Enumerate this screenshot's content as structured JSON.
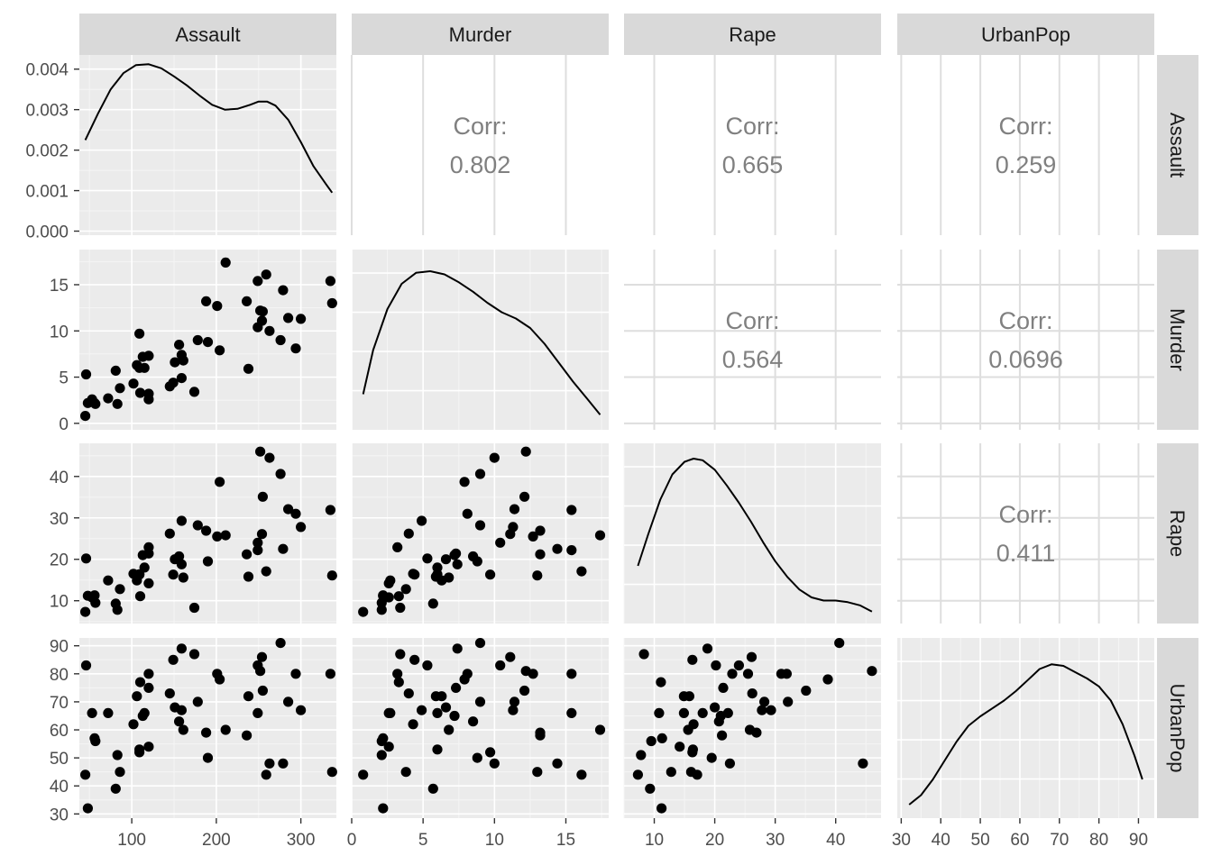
{
  "chart_data": {
    "type": "scatter-matrix",
    "variables": [
      "Assault",
      "Murder",
      "Rape",
      "UrbanPop"
    ],
    "corr_label": "Corr:",
    "correlations": {
      "Murder|Assault": "0.802",
      "Rape|Assault": "0.665",
      "UrbanPop|Assault": "0.259",
      "Rape|Murder": "0.564",
      "UrbanPop|Murder": "0.0696",
      "UrbanPop|Rape": "0.411"
    },
    "axes": {
      "Assault": {
        "range": [
          38,
          342
        ],
        "ticks": [
          100,
          200,
          300
        ]
      },
      "Murder": {
        "range": [
          0,
          18
        ],
        "ticks": [
          0,
          5,
          10,
          15
        ]
      },
      "Rape": {
        "range": [
          5,
          47.5
        ],
        "ticks": [
          10,
          20,
          30,
          40
        ]
      },
      "UrbanPop": {
        "range": [
          29,
          94
        ],
        "ticks": [
          30,
          40,
          50,
          60,
          70,
          80,
          90
        ]
      }
    },
    "y_axes": {
      "density": {
        "range": [
          -0.0001,
          0.00435
        ],
        "ticks": [
          0,
          0.001,
          0.002,
          0.003,
          0.004
        ],
        "labels": [
          "0.000",
          "0.001",
          "0.002",
          "0.003",
          "0.004"
        ]
      },
      "Murder": {
        "range": [
          -0.7,
          18.8
        ],
        "ticks": [
          0,
          5,
          10,
          15
        ]
      },
      "Rape": {
        "range": [
          4.5,
          48
        ],
        "ticks": [
          10,
          20,
          30,
          40
        ]
      },
      "UrbanPop": {
        "range": [
          28.5,
          92.8
        ],
        "ticks": [
          30,
          40,
          50,
          60,
          70,
          80,
          90
        ]
      }
    },
    "densities": {
      "Assault": [
        [
          45,
          0.00225
        ],
        [
          60,
          0.0029
        ],
        [
          75,
          0.0035
        ],
        [
          90,
          0.0039
        ],
        [
          105,
          0.0041
        ],
        [
          120,
          0.00412
        ],
        [
          135,
          0.00402
        ],
        [
          150,
          0.00382
        ],
        [
          165,
          0.0036
        ],
        [
          180,
          0.00335
        ],
        [
          195,
          0.00312
        ],
        [
          210,
          0.003
        ],
        [
          225,
          0.00302
        ],
        [
          240,
          0.00312
        ],
        [
          250,
          0.0032
        ],
        [
          260,
          0.0032
        ],
        [
          270,
          0.0031
        ],
        [
          285,
          0.00275
        ],
        [
          300,
          0.0022
        ],
        [
          315,
          0.0016
        ],
        [
          330,
          0.00115
        ],
        [
          337,
          0.00095
        ]
      ],
      "Murder": [
        [
          0.8,
          0.18
        ],
        [
          1.5,
          0.46
        ],
        [
          2.5,
          0.72
        ],
        [
          3.5,
          0.88
        ],
        [
          4.5,
          0.95
        ],
        [
          5.5,
          0.96
        ],
        [
          6.5,
          0.94
        ],
        [
          7.5,
          0.89
        ],
        [
          8.5,
          0.83
        ],
        [
          9.5,
          0.76
        ],
        [
          10.5,
          0.7
        ],
        [
          11.5,
          0.66
        ],
        [
          12.5,
          0.6
        ],
        [
          13.5,
          0.5
        ],
        [
          14.5,
          0.38
        ],
        [
          15.5,
          0.26
        ],
        [
          16.5,
          0.15
        ],
        [
          17.4,
          0.05
        ]
      ],
      "Rape": [
        [
          7.3,
          0.32
        ],
        [
          9,
          0.52
        ],
        [
          11,
          0.74
        ],
        [
          13,
          0.9
        ],
        [
          15,
          0.98
        ],
        [
          16.5,
          1.0
        ],
        [
          18,
          0.99
        ],
        [
          20,
          0.93
        ],
        [
          22,
          0.83
        ],
        [
          24,
          0.72
        ],
        [
          26,
          0.6
        ],
        [
          28,
          0.47
        ],
        [
          30,
          0.35
        ],
        [
          32,
          0.25
        ],
        [
          34,
          0.17
        ],
        [
          36,
          0.12
        ],
        [
          38,
          0.1
        ],
        [
          40,
          0.1
        ],
        [
          42,
          0.09
        ],
        [
          44,
          0.07
        ],
        [
          46,
          0.03
        ]
      ],
      "UrbanPop": [
        [
          32,
          0.04
        ],
        [
          35,
          0.1
        ],
        [
          38,
          0.2
        ],
        [
          41,
          0.32
        ],
        [
          44,
          0.44
        ],
        [
          47,
          0.54
        ],
        [
          50,
          0.6
        ],
        [
          53,
          0.65
        ],
        [
          56,
          0.7
        ],
        [
          59,
          0.76
        ],
        [
          62,
          0.83
        ],
        [
          65,
          0.9
        ],
        [
          68,
          0.93
        ],
        [
          71,
          0.92
        ],
        [
          74,
          0.88
        ],
        [
          77,
          0.84
        ],
        [
          80,
          0.79
        ],
        [
          83,
          0.7
        ],
        [
          86,
          0.55
        ],
        [
          89,
          0.35
        ],
        [
          91,
          0.2
        ]
      ]
    },
    "observations": {
      "Assault": [
        236,
        263,
        294,
        190,
        276,
        204,
        110,
        238,
        335,
        211,
        46,
        120,
        249,
        113,
        56,
        115,
        109,
        249,
        83,
        300,
        149,
        255,
        72,
        259,
        178,
        109,
        102,
        252,
        57,
        159,
        285,
        254,
        337,
        45,
        120,
        151,
        159,
        106,
        174,
        279,
        86,
        188,
        201,
        120,
        48,
        156,
        145,
        81,
        53,
        161
      ],
      "Murder": [
        13.2,
        10.0,
        8.1,
        8.8,
        9.0,
        7.9,
        3.3,
        5.9,
        15.4,
        17.4,
        5.3,
        2.6,
        10.4,
        7.2,
        2.2,
        6.0,
        9.7,
        15.4,
        2.1,
        11.3,
        4.4,
        12.1,
        2.7,
        16.1,
        9.0,
        6.0,
        4.3,
        12.2,
        2.1,
        7.4,
        11.4,
        11.1,
        13.0,
        0.8,
        7.3,
        6.6,
        4.9,
        6.3,
        3.4,
        14.4,
        3.8,
        13.2,
        12.7,
        3.2,
        2.2,
        8.5,
        4.0,
        5.7,
        2.6,
        6.8
      ],
      "Rape": [
        21.2,
        44.5,
        31.0,
        19.5,
        40.6,
        38.7,
        11.1,
        15.8,
        31.9,
        25.8,
        20.2,
        14.2,
        24.0,
        21.0,
        11.3,
        18.0,
        16.3,
        22.2,
        7.8,
        27.8,
        16.3,
        35.1,
        14.9,
        17.1,
        28.2,
        16.4,
        16.5,
        46.0,
        9.5,
        18.8,
        32.1,
        26.1,
        16.1,
        7.3,
        21.4,
        20.0,
        29.3,
        14.9,
        8.3,
        22.5,
        12.8,
        26.9,
        25.5,
        22.9,
        11.2,
        20.7,
        26.2,
        9.3,
        10.8,
        15.6
      ],
      "UrbanPop": [
        58,
        48,
        80,
        50,
        91,
        78,
        77,
        72,
        80,
        60,
        83,
        54,
        83,
        65,
        57,
        66,
        52,
        66,
        51,
        67,
        85,
        74,
        66,
        44,
        70,
        53,
        62,
        81,
        56,
        89,
        70,
        86,
        45,
        44,
        75,
        68,
        67,
        72,
        87,
        48,
        45,
        59,
        80,
        80,
        32,
        63,
        73,
        39,
        66,
        60
      ]
    }
  }
}
